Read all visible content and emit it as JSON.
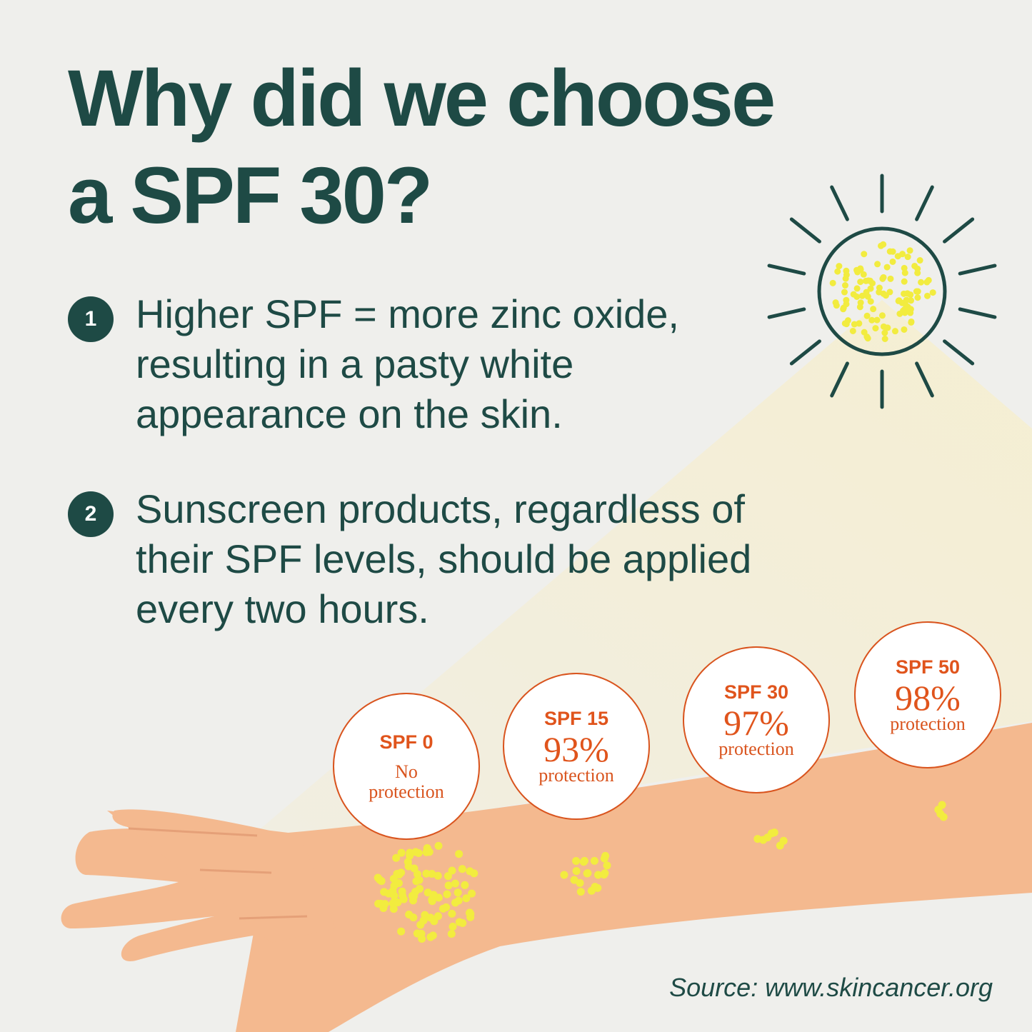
{
  "title": {
    "line1": "Why did we choose",
    "line2": "a SPF 30?"
  },
  "points": [
    {
      "number": "1",
      "text": "Higher SPF = more zinc oxide, resulting in a pasty white appearance on the skin."
    },
    {
      "number": "2",
      "text": "Sunscreen products, regardless of their SPF levels, should be applied every two hours."
    }
  ],
  "spf_levels": [
    {
      "label": "SPF 0",
      "value": "",
      "protection": "No protection"
    },
    {
      "label": "SPF 15",
      "value": "93%",
      "protection": "protection"
    },
    {
      "label": "SPF 30",
      "value": "97%",
      "protection": "protection"
    },
    {
      "label": "SPF 50",
      "value": "98%",
      "protection": "protection"
    }
  ],
  "source": "Source: www.skincancer.org",
  "icons": [
    "sun-icon",
    "arm-illustration",
    "uv-dots"
  ],
  "colors": {
    "primary": "#1e4a45",
    "accent": "#e0541c",
    "skin": "#f4b98f",
    "uv": "#f2ec3f",
    "background": "#efefec"
  }
}
